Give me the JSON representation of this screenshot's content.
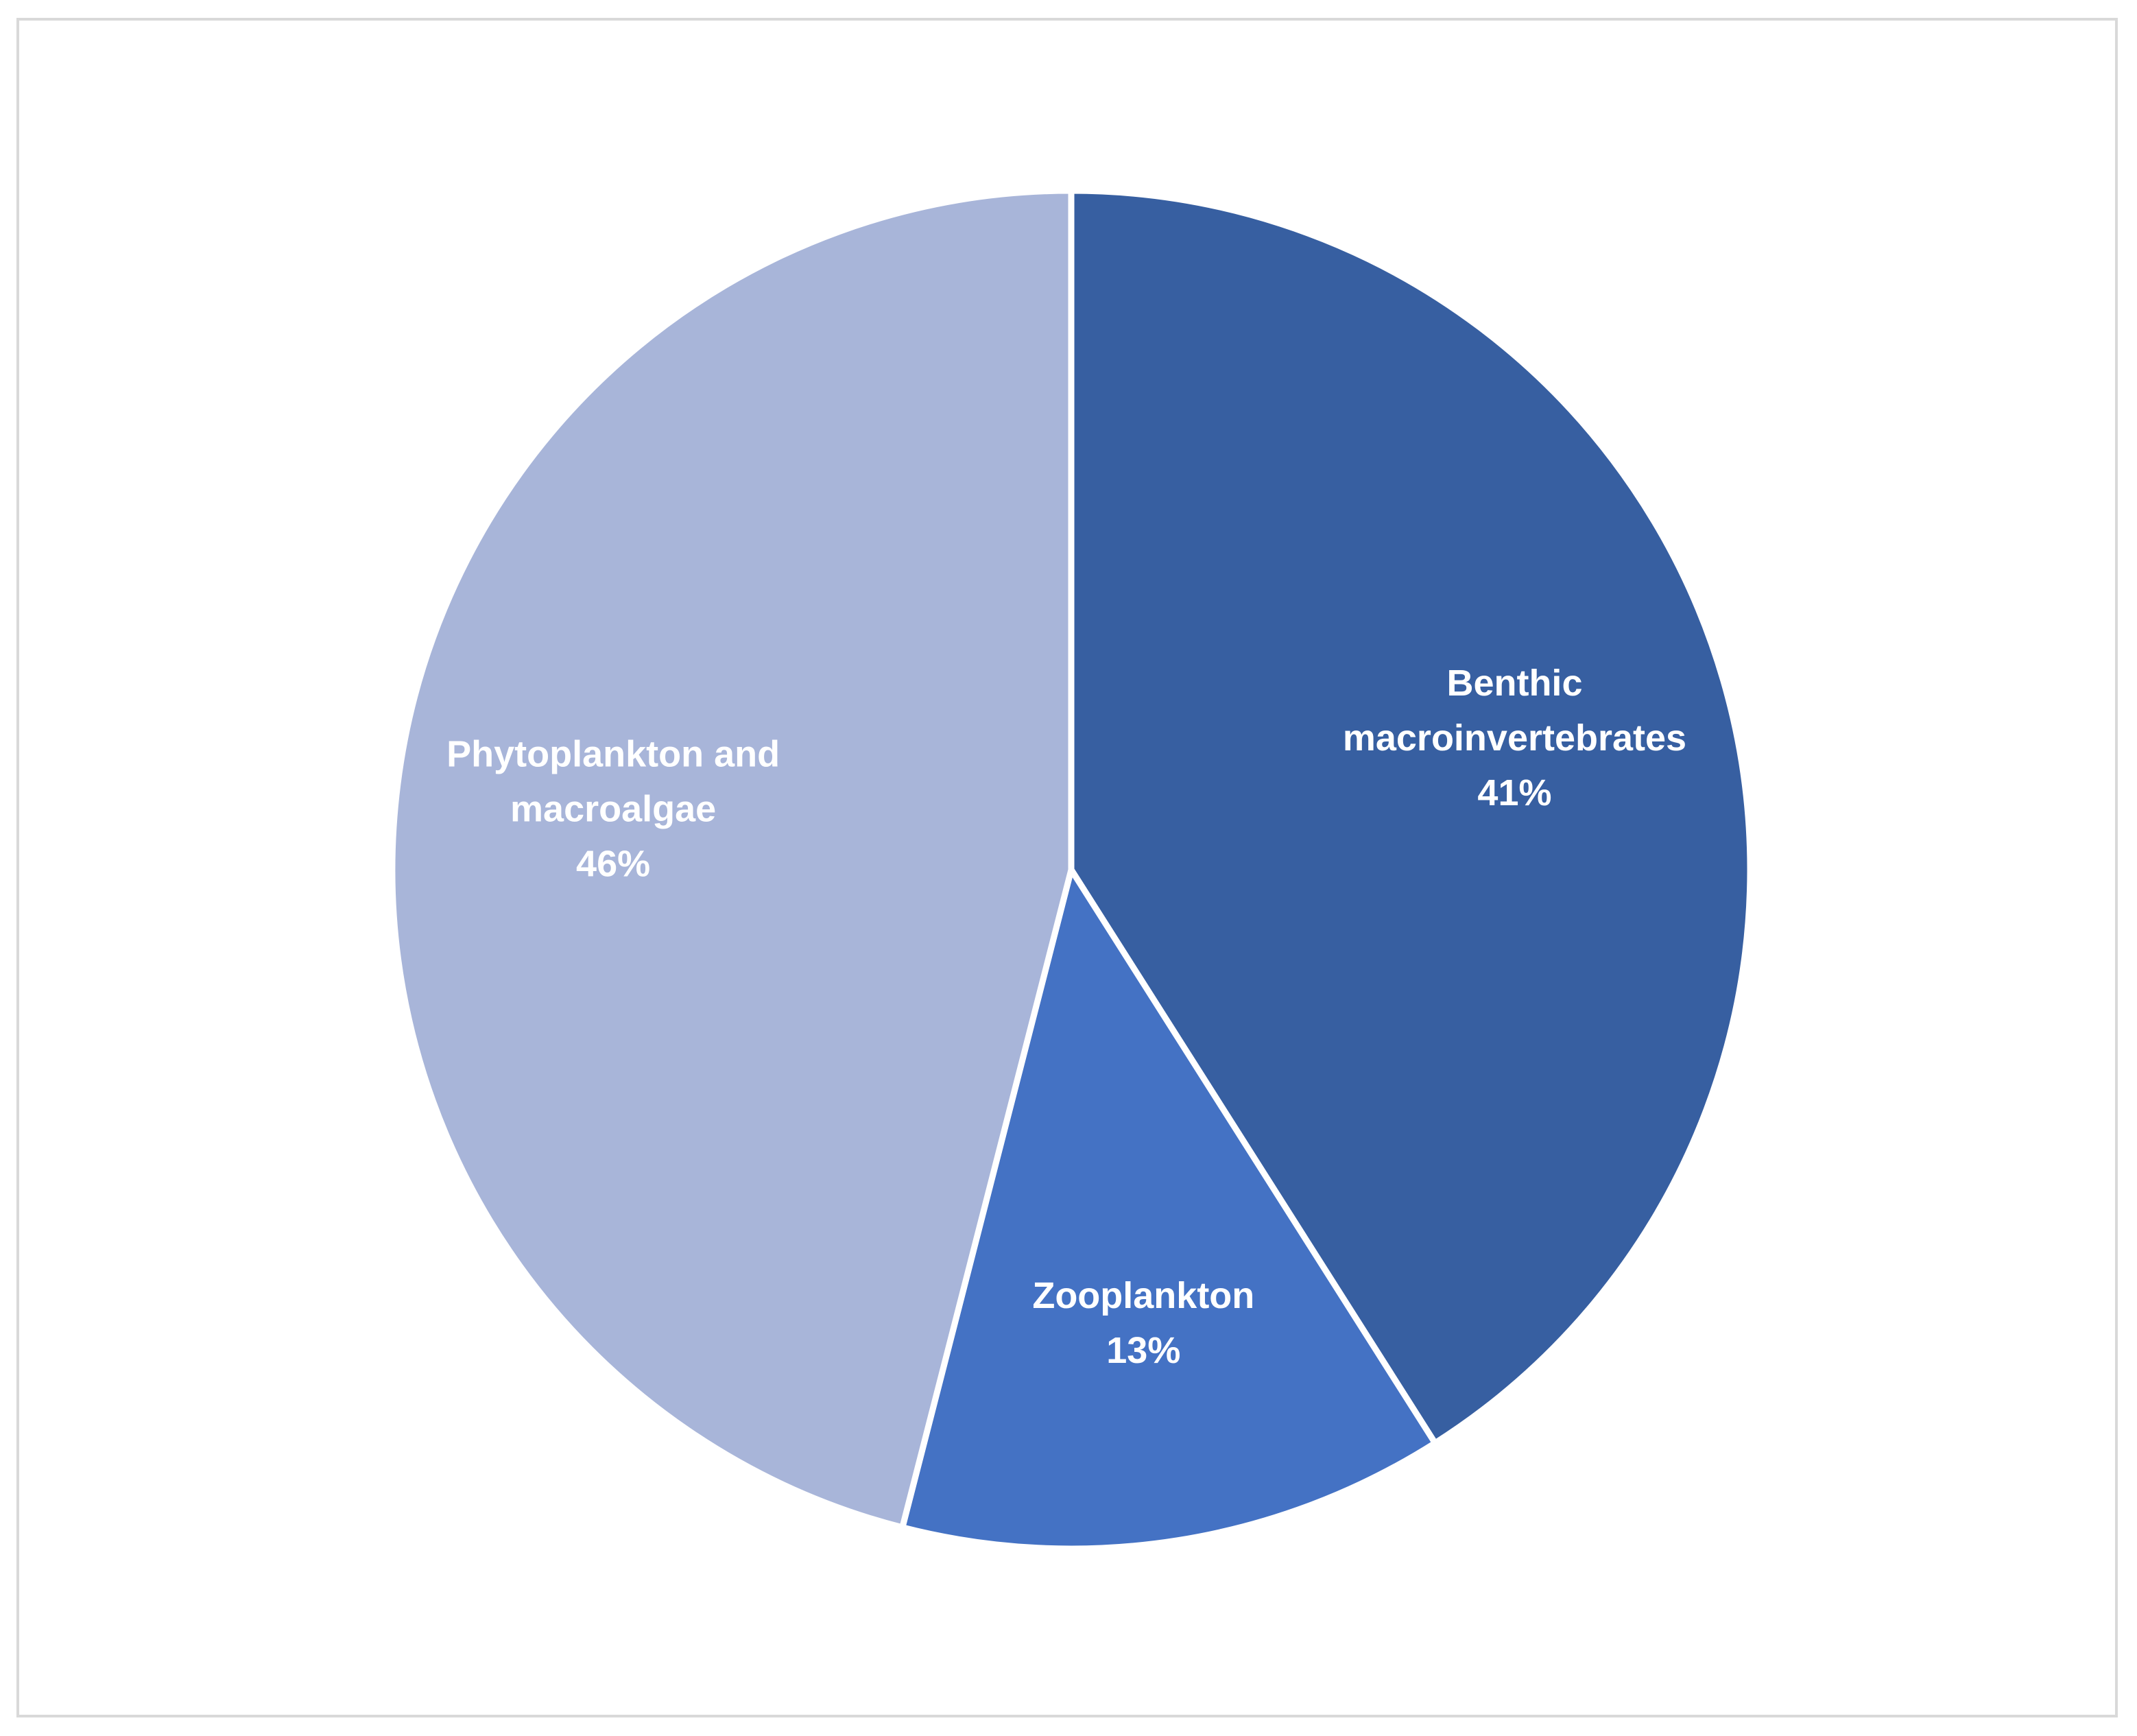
{
  "chart_data": {
    "type": "pie",
    "start_angle_deg": 0,
    "direction": "clockwise",
    "slices": [
      {
        "label_lines": [
          "Benthic",
          "macroinvertebrates"
        ],
        "name": "Benthic macroinvertebrates",
        "value": 41,
        "value_label": "41%",
        "color": "#375FA1"
      },
      {
        "label_lines": [
          "Zooplankton"
        ],
        "name": "Zooplankton",
        "value": 13,
        "value_label": "13%",
        "color": "#4472C4"
      },
      {
        "label_lines": [
          "Phytoplankton and",
          "macroalgae"
        ],
        "name": "Phytoplankton and macroalgae",
        "value": 46,
        "value_label": "46%",
        "color": "#A8B5D9"
      }
    ],
    "slice_border_color": "#ffffff",
    "label_color": "#ffffff",
    "frame_border_color": "#d9d9d9"
  }
}
